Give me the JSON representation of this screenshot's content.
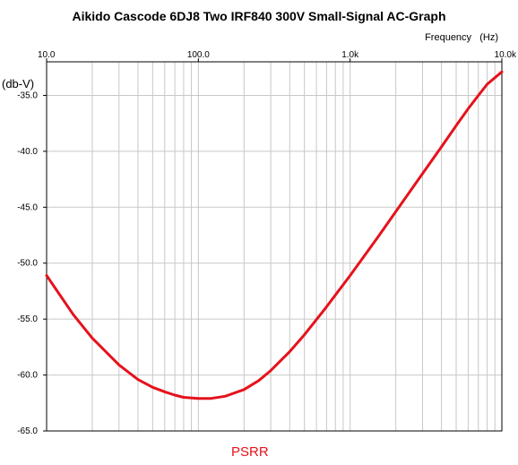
{
  "chart_data": {
    "type": "line",
    "title": "Aikido Cascode 6DJ8 Two IRF840 300V Small-Signal AC-Graph",
    "xlabel": "Frequency   (Hz)",
    "ylabel": "(db-V)",
    "x_scale": "log",
    "xlim": [
      10,
      10000
    ],
    "ylim": [
      -65,
      -32
    ],
    "x_ticks": [
      10,
      100,
      1000,
      10000
    ],
    "x_tick_labels": [
      "10.0",
      "100.0",
      "1.0k",
      "10.0k"
    ],
    "y_ticks": [
      -35,
      -40,
      -45,
      -50,
      -55,
      -60,
      -65
    ],
    "y_tick_labels": [
      "-35.0",
      "-40.0",
      "-45.0",
      "-50.0",
      "-55.0",
      "-60.0",
      "-65.0"
    ],
    "grid": true,
    "legend_position": "bottom-center",
    "series": [
      {
        "name": "PSRR",
        "color": "#e5121b",
        "x": [
          10,
          15,
          20,
          30,
          40,
          50,
          60,
          70,
          80,
          100,
          120,
          150,
          200,
          250,
          300,
          400,
          500,
          700,
          1000,
          1500,
          2000,
          3000,
          4000,
          5000,
          6000,
          7000,
          8000,
          10000
        ],
        "y": [
          -51.1,
          -54.6,
          -56.7,
          -59.1,
          -60.4,
          -61.1,
          -61.5,
          -61.8,
          -62.0,
          -62.1,
          -62.1,
          -61.9,
          -61.3,
          -60.5,
          -59.6,
          -57.9,
          -56.4,
          -53.9,
          -51.1,
          -47.8,
          -45.4,
          -42.0,
          -39.6,
          -37.7,
          -36.2,
          -35.0,
          -34.0,
          -32.9
        ]
      }
    ]
  }
}
